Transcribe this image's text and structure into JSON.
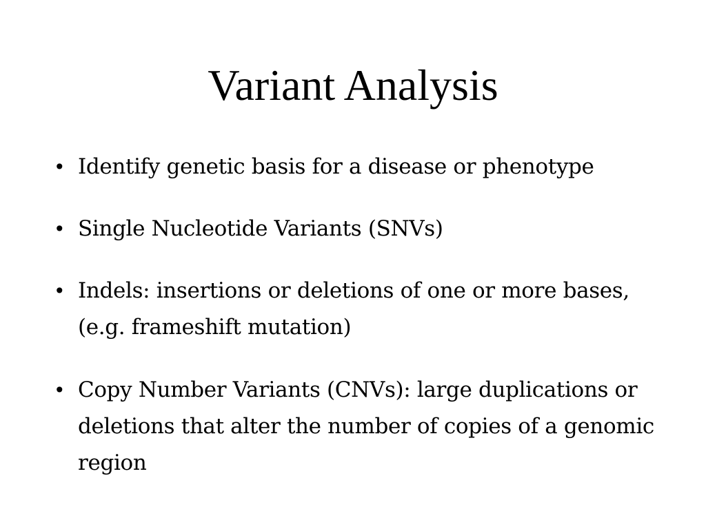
{
  "slide": {
    "title": "Variant Analysis",
    "bullets": [
      {
        "marker": "•",
        "text": "Identify genetic basis for a disease or phenotype"
      },
      {
        "marker": "•",
        "text": "Single Nucleotide Variants (SNVs)"
      },
      {
        "marker": "•",
        "text": "Indels: insertions or deletions of one or more bases, (e.g. frameshift mutation)"
      },
      {
        "marker": "•",
        "text": "Copy Number Variants (CNVs): large duplications or deletions that alter the number of copies of a genomic region"
      }
    ]
  }
}
